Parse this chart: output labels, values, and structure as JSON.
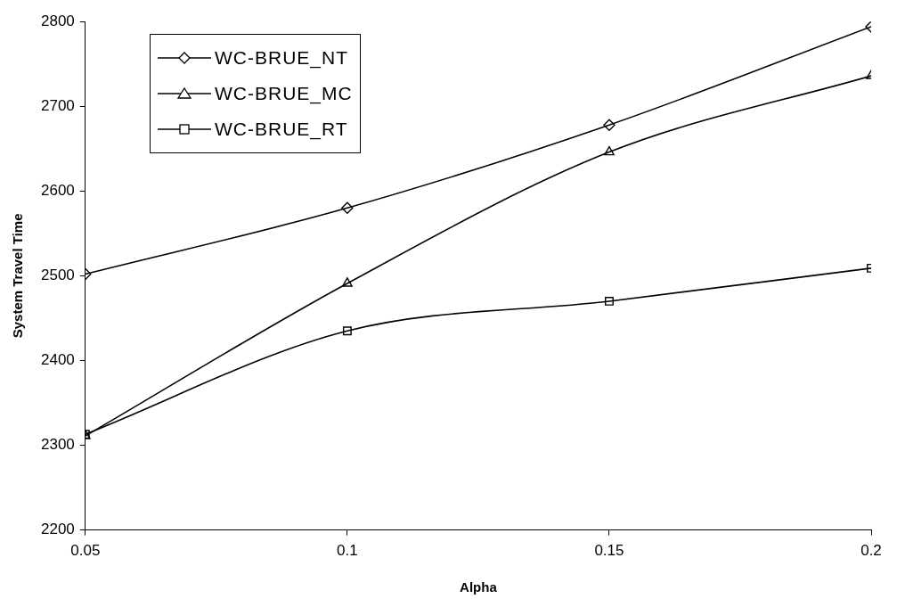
{
  "chart_data": {
    "type": "line",
    "xlabel": "Alpha",
    "ylabel": "System Travel Time",
    "x": [
      0.05,
      0.1,
      0.15,
      0.2
    ],
    "xlim": [
      0.05,
      0.2
    ],
    "xticks": [
      0.05,
      0.1,
      0.15,
      0.2
    ],
    "ylim": [
      2200,
      2800
    ],
    "yticks": [
      2200,
      2300,
      2400,
      2500,
      2600,
      2700,
      2800
    ],
    "grid": false,
    "legend": "top left",
    "series": [
      {
        "name": "WC-BRUE_NT",
        "color": "#000000",
        "marker": "diamond",
        "values": [
          2502,
          2580,
          2678,
          2794
        ]
      },
      {
        "name": "WC-BRUE_MC",
        "color": "#000000",
        "marker": "triangle",
        "values": [
          2311,
          2491,
          2646,
          2736
        ]
      },
      {
        "name": "WC-BRUE_RT",
        "color": "#000000",
        "marker": "square",
        "values": [
          2313,
          2435,
          2470,
          2509
        ]
      }
    ]
  }
}
